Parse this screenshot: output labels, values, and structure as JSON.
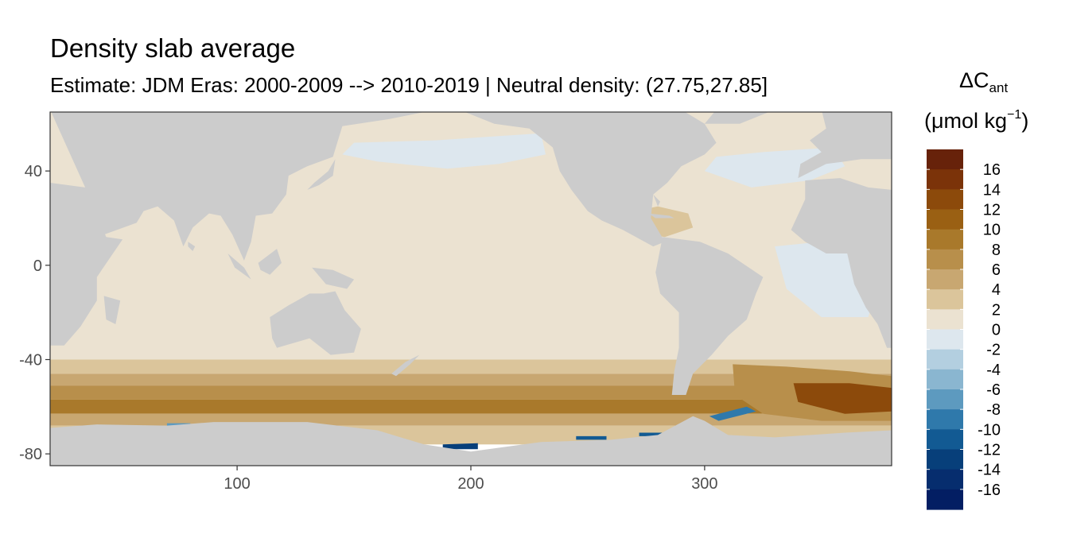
{
  "chart_data": {
    "type": "heatmap",
    "title": "Density slab average",
    "subtitle": "Estimate: JDM Eras: 2000-2009 --> 2010-2019 | Neutral density: (27.75,27.85]",
    "legend_title": "ΔC",
    "legend_title_sub": "ant",
    "legend_unit_pre": "(μmol kg",
    "legend_unit_sup": "−1",
    "legend_unit_post": ")",
    "xlabel": "",
    "ylabel": "",
    "xlim": [
      20,
      380
    ],
    "ylim": [
      -85,
      65
    ],
    "x_ticks": [
      100,
      200,
      300
    ],
    "y_ticks": [
      40,
      0,
      -40,
      -80
    ],
    "legend_breaks": [
      16,
      14,
      12,
      10,
      8,
      6,
      4,
      2,
      0,
      -2,
      -4,
      -6,
      -8,
      -10,
      -12,
      -14,
      -16
    ],
    "legend_colors": [
      "#67220a",
      "#7b3309",
      "#8c4a0b",
      "#9a6013",
      "#a9792b",
      "#b88f4b",
      "#c8a771",
      "#dbc59b",
      "#ebe2d1",
      "#dde7ee",
      "#b3cfe0",
      "#8ab6d0",
      "#5d9abf",
      "#2f79ab",
      "#125a93",
      "#073f7a",
      "#062d6e",
      "#031e63"
    ],
    "land_color": "#cccccc",
    "grid": "off",
    "legend_position": "right",
    "zonal_bands": [
      {
        "lat_min": -40,
        "lat_max": 65,
        "value": 1
      },
      {
        "lat_min": -46,
        "lat_max": -40,
        "value": 3
      },
      {
        "lat_min": -51,
        "lat_max": -46,
        "value": 5
      },
      {
        "lat_min": -57,
        "lat_max": -51,
        "value": 7
      },
      {
        "lat_min": -63,
        "lat_max": -57,
        "value": 9
      },
      {
        "lat_min": -68,
        "lat_max": -63,
        "value": 5
      },
      {
        "lat_min": -76,
        "lat_max": -68,
        "value": 3
      }
    ],
    "regional_values": [
      {
        "region": "North Pacific subpolar",
        "value": -1
      },
      {
        "region": "North Atlantic",
        "value": -1
      },
      {
        "region": "Equatorial Atlantic",
        "value": -1
      },
      {
        "region": "Caribbean",
        "value": 3
      },
      {
        "region": "South Atlantic sector 40S-65S",
        "value": 13
      },
      {
        "region": "Weddell Sea",
        "value": -9
      },
      {
        "region": "Ross Sea",
        "value": -13
      },
      {
        "region": "Amundsen Sea",
        "value": -11
      },
      {
        "region": "East Antarctic shelf",
        "value": -7
      }
    ]
  }
}
